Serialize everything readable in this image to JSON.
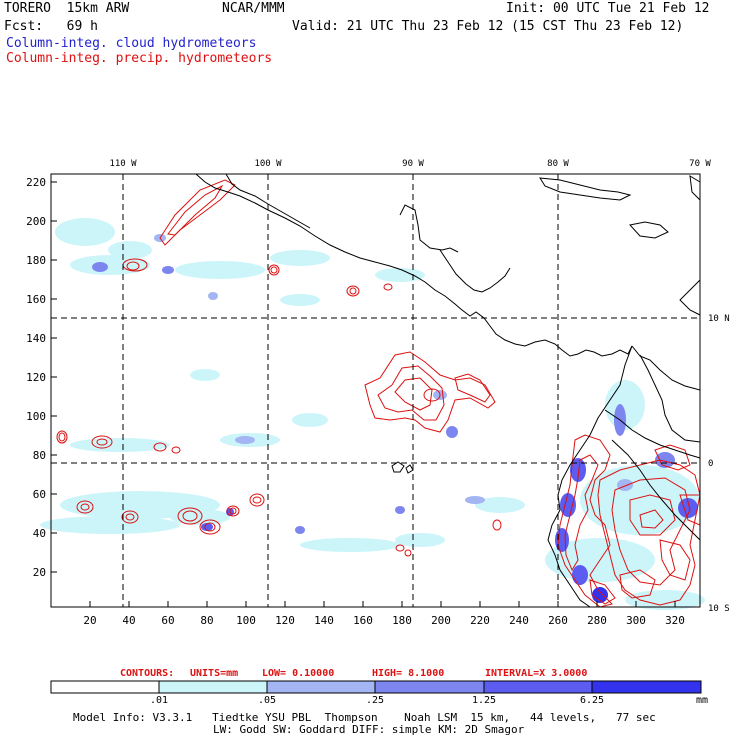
{
  "header": {
    "model_name": "TORERO  15km ARW",
    "forecast": "Fcst:   69 h",
    "center": "NCAR/MMM",
    "init": "Init: 00 UTC Tue 21 Feb 12",
    "valid": "Valid: 21 UTC Thu 23 Feb 12 (15 CST Thu 23 Feb 12)",
    "field_cloud": "Column-integ. cloud hydrometeors",
    "field_precip": "Column-integ. precip. hydrometeors"
  },
  "map": {
    "lon_labels": [
      "110 W",
      "100 W",
      "90 W",
      "80 W",
      "70 W"
    ],
    "lat_labels": [
      "10 N",
      "0",
      "10 S"
    ],
    "y_ticks": [
      "220",
      "200",
      "180",
      "160",
      "140",
      "120",
      "100",
      "80",
      "60",
      "40",
      "20"
    ],
    "x_ticks": [
      "20",
      "40",
      "60",
      "80",
      "100",
      "120",
      "140",
      "160",
      "180",
      "200",
      "220",
      "240",
      "260",
      "280",
      "300",
      "320"
    ]
  },
  "contours": {
    "label": "CONTOURS:",
    "units": "UNITS=mm",
    "low": "LOW= 0.10000",
    "high": "HIGH=  8.1000",
    "interval": "INTERVAL=X  3.0000"
  },
  "colorbar": {
    "labels": [
      ".01",
      ".05",
      ".25",
      "1.25",
      "6.25"
    ],
    "unit": "mm",
    "colors": [
      "#ffffff",
      "#ccf5fa",
      "#a3b5f2",
      "#7d85ee",
      "#5c5cf0",
      "#3333ee"
    ]
  },
  "footer": {
    "line1": "Model Info: V3.3.1   Tiedtke YSU PBL  Thompson    Noah LSM  15 km,   44 levels,   77 sec",
    "line2": "LW: Godd SW: Goddard DIFF: simple KM: 2D Smagor"
  }
}
